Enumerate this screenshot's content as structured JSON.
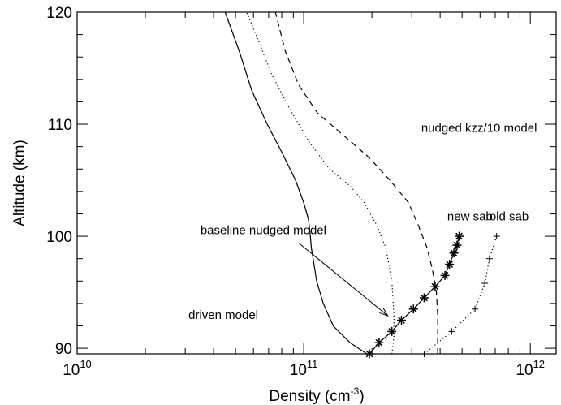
{
  "chart_data": {
    "type": "line",
    "xlabel": "Density (cm",
    "xlabel_sup": "-3",
    "xlabel_end": ")",
    "ylabel": "Altitude (km)",
    "xscale": "log",
    "xlim": [
      10000000000.0,
      1300000000000.0
    ],
    "ylim": [
      89.5,
      120
    ],
    "grid": false,
    "x_ticks": [
      {
        "value": 10000000000.0,
        "base": "10",
        "exp": "10"
      },
      {
        "value": 100000000000.0,
        "base": "10",
        "exp": "11"
      },
      {
        "value": 1000000000000.0,
        "base": "10",
        "exp": "12"
      }
    ],
    "y_ticks": [
      {
        "value": 90,
        "label": "90"
      },
      {
        "value": 100,
        "label": "100"
      },
      {
        "value": 110,
        "label": "110"
      },
      {
        "value": 120,
        "label": "120"
      }
    ],
    "series": [
      {
        "style": "solid",
        "x": [
          190000000000.0,
          160000000000.0,
          135000000000.0,
          122000000000.0,
          114000000000.0,
          110000000000.0,
          108000000000.0,
          107000000000.0,
          105000000000.0,
          100000000000.0,
          92000000000.0,
          80000000000.0,
          69000000000.0,
          59000000000.0,
          52000000000.0,
          45000000000.0
        ],
        "y": [
          89.5,
          90.5,
          92,
          94,
          96,
          98,
          99,
          100,
          101.5,
          103,
          105,
          107.5,
          110,
          113,
          116.5,
          120
        ]
      },
      {
        "style": "dotted",
        "x": [
          245000000000.0,
          250000000000.0,
          250000000000.0,
          245000000000.0,
          230000000000.0,
          210000000000.0,
          185000000000.0,
          160000000000.0,
          130000000000.0,
          105000000000.0,
          86000000000.0,
          72000000000.0,
          63000000000.0,
          56000000000.0
        ],
        "y": [
          89.5,
          91,
          93,
          96,
          99,
          101,
          103,
          104.5,
          106,
          108.5,
          111.5,
          114.5,
          117.5,
          120
        ]
      },
      {
        "style": "dashed",
        "x": [
          390000000000.0,
          390000000000.0,
          385000000000.0,
          370000000000.0,
          350000000000.0,
          320000000000.0,
          290000000000.0,
          240000000000.0,
          195000000000.0,
          150000000000.0,
          115000000000.0,
          95000000000.0,
          83000000000.0,
          75000000000.0
        ],
        "y": [
          89.5,
          93,
          95,
          97,
          99,
          101,
          103,
          105,
          107,
          109,
          111,
          113.5,
          116.5,
          120
        ]
      },
      {
        "style": "solid",
        "marker": "asterisk",
        "x": [
          195000000000.0,
          215000000000.0,
          245000000000.0,
          270000000000.0,
          305000000000.0,
          340000000000.0,
          380000000000.0,
          420000000000.0,
          440000000000.0,
          460000000000.0,
          475000000000.0,
          485000000000.0
        ],
        "y": [
          89.5,
          90.5,
          91.5,
          92.5,
          93.5,
          94.5,
          95.5,
          96.5,
          97.5,
          98.5,
          99.2,
          100
        ]
      },
      {
        "style": "dotted",
        "marker": "plus",
        "x": [
          340000000000.0,
          450000000000.0,
          570000000000.0,
          630000000000.0,
          660000000000.0,
          710000000000.0
        ],
        "y": [
          89.5,
          91.5,
          93.5,
          95.8,
          98,
          100
        ]
      }
    ],
    "annotations": [
      {
        "text": "nudged kzz/10 model",
        "x": 330000000000.0,
        "y": 109.3
      },
      {
        "text": "new sab",
        "x": 430000000000.0,
        "y": 101.4
      },
      {
        "text": "old sab",
        "x": 660000000000.0,
        "y": 101.4
      },
      {
        "text": "baseline nudged model",
        "x": 35000000000.0,
        "y": 100.2
      },
      {
        "text": "driven model",
        "x": 31000000000.0,
        "y": 92.6
      }
    ],
    "arrow": {
      "from_x": 95000000000.0,
      "from_y": 99.4,
      "to_x": 235000000000.0,
      "to_y": 92.9
    }
  }
}
